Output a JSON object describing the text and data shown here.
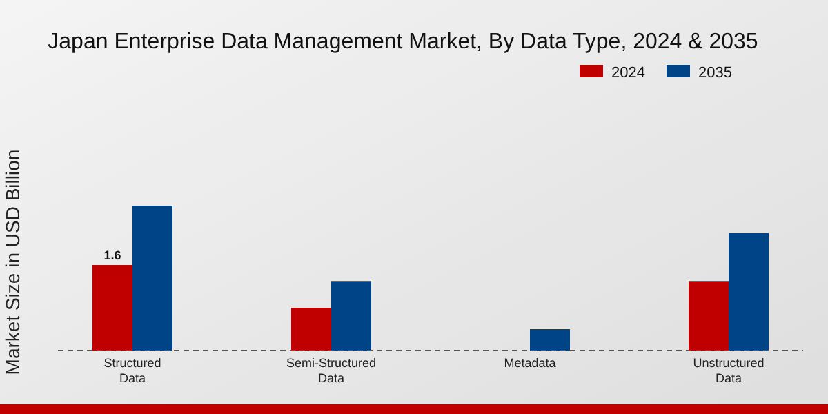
{
  "chart_data": {
    "type": "bar",
    "title": "Japan Enterprise Data Management Market, By Data Type, 2024 & 2035",
    "ylabel": "Market Size in USD Billion",
    "categories": [
      "Structured\nData",
      "Semi-Structured\nData",
      "Metadata",
      "Unstructured\nData"
    ],
    "series": [
      {
        "name": "2024",
        "color": "#c00000",
        "values": [
          1.6,
          0.8,
          null,
          1.3
        ],
        "value_labels": [
          "1.6",
          null,
          null,
          null
        ]
      },
      {
        "name": "2035",
        "color": "#004488",
        "values": [
          2.71,
          1.3,
          0.4,
          2.2
        ]
      }
    ],
    "legend": "top right"
  }
}
